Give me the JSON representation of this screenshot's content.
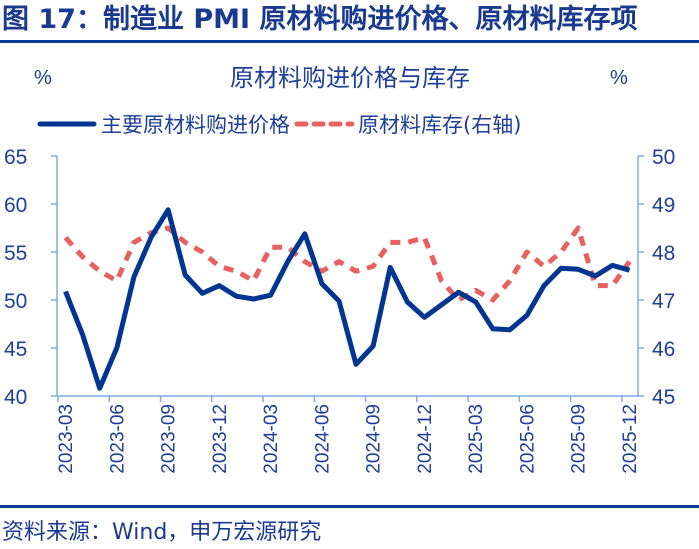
{
  "figure": {
    "title": "图 17：制造业 PMI 原材料购进价格、原材料库存项",
    "source": "资料来源：Wind，申万宏源研究"
  },
  "colors": {
    "primary_series": "#003592",
    "secondary_series": "#e8605f",
    "axis": "#7eaedc",
    "text": "#1e3f97",
    "rule": "#0b3a96"
  },
  "chart_data": {
    "type": "line",
    "title": "原材料购进价格与库存",
    "left_unit": "%",
    "right_unit": "%",
    "xlabel": "",
    "ylabel": "%",
    "y2label": "%",
    "ylim": [
      40,
      65
    ],
    "y2lim": [
      45,
      50
    ],
    "yticks": [
      65,
      60,
      55,
      50,
      45,
      40
    ],
    "y2ticks": [
      50,
      49,
      48,
      47,
      46,
      45
    ],
    "grid": false,
    "legend_position": "top",
    "xtick_labels": [
      "2023-03",
      "2023-06",
      "2023-09",
      "2023-12",
      "2024-03",
      "2024-06",
      "2024-09",
      "2024-12",
      "2025-03",
      "2025-06",
      "2025-09",
      "2025-12"
    ],
    "x": [
      "2023-03",
      "2023-04",
      "2023-05",
      "2023-06",
      "2023-07",
      "2023-08",
      "2023-09",
      "2023-10",
      "2023-11",
      "2023-12",
      "2024-01",
      "2024-02",
      "2024-03",
      "2024-04",
      "2024-05",
      "2024-06",
      "2024-07",
      "2024-08",
      "2024-09",
      "2024-10",
      "2024-11",
      "2024-12",
      "2025-01",
      "2025-02",
      "2025-03",
      "2025-04",
      "2025-05",
      "2025-06",
      "2025-07",
      "2025-08",
      "2025-09",
      "2025-10",
      "2025-11",
      "2025-12"
    ],
    "series": [
      {
        "name": "主要原材料购进价格",
        "axis": "left",
        "style": "solid",
        "values": [
          50.9,
          46.4,
          40.8,
          45.0,
          52.4,
          56.5,
          59.4,
          52.6,
          50.7,
          51.5,
          50.4,
          50.1,
          50.5,
          54.0,
          56.9,
          51.7,
          49.9,
          43.3,
          45.2,
          53.4,
          49.8,
          48.2,
          49.5,
          50.8,
          49.8,
          47.0,
          46.9,
          48.4,
          51.5,
          53.3,
          53.2,
          52.5,
          53.6,
          53.1
        ]
      },
      {
        "name": "原材料库存(右轴)",
        "axis": "right",
        "style": "dashed",
        "values": [
          48.3,
          47.9,
          47.6,
          47.4,
          48.2,
          48.4,
          48.5,
          48.2,
          48.0,
          47.7,
          47.6,
          47.4,
          48.1,
          48.1,
          47.8,
          47.6,
          47.8,
          47.6,
          47.7,
          48.2,
          48.2,
          48.3,
          47.4,
          47.0,
          47.2,
          47.0,
          47.4,
          48.0,
          47.7,
          48.0,
          48.5,
          47.3,
          47.3,
          47.8
        ]
      }
    ]
  }
}
